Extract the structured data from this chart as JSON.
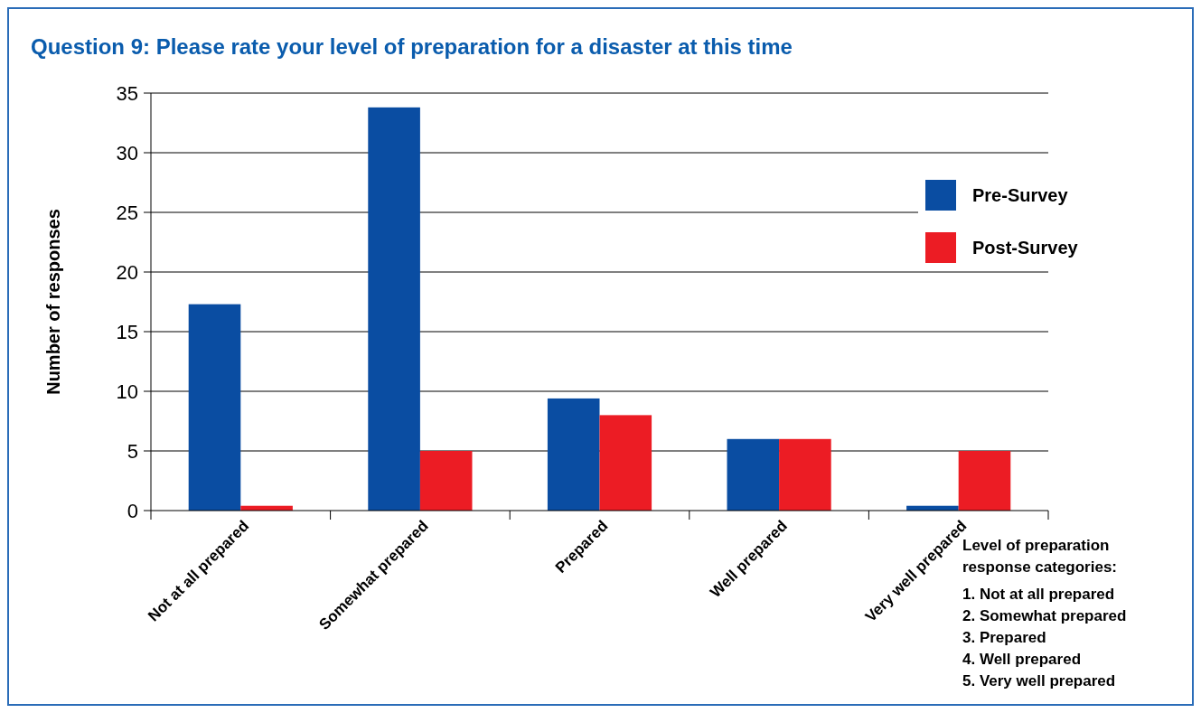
{
  "chart_data": {
    "type": "bar",
    "title": "Question 9: Please rate your level of preparation for a disaster at this time",
    "ylabel": "Number of responses",
    "categories": [
      "Not  at all prepared",
      "Somewhat prepared",
      "Prepared",
      "Well prepared",
      "Very well prepared"
    ],
    "series": [
      {
        "name": "Pre-Survey",
        "color": "#0a4da2",
        "values": [
          17.3,
          33.8,
          9.4,
          6,
          0.4
        ]
      },
      {
        "name": "Post-Survey",
        "color": "#ec1c24",
        "values": [
          0.4,
          5,
          8,
          6,
          5
        ]
      }
    ],
    "ylim": [
      0,
      35
    ],
    "yticks": [
      0,
      5,
      10,
      15,
      20,
      25,
      30,
      35
    ],
    "grid": "y",
    "legend": "top right",
    "annotations": [
      "Level of preparation",
      "response categories:",
      "1. Not at all prepared",
      "2. Somewhat prepared",
      "3. Prepared",
      "4. Well prepared",
      "5. Very well prepared"
    ]
  }
}
